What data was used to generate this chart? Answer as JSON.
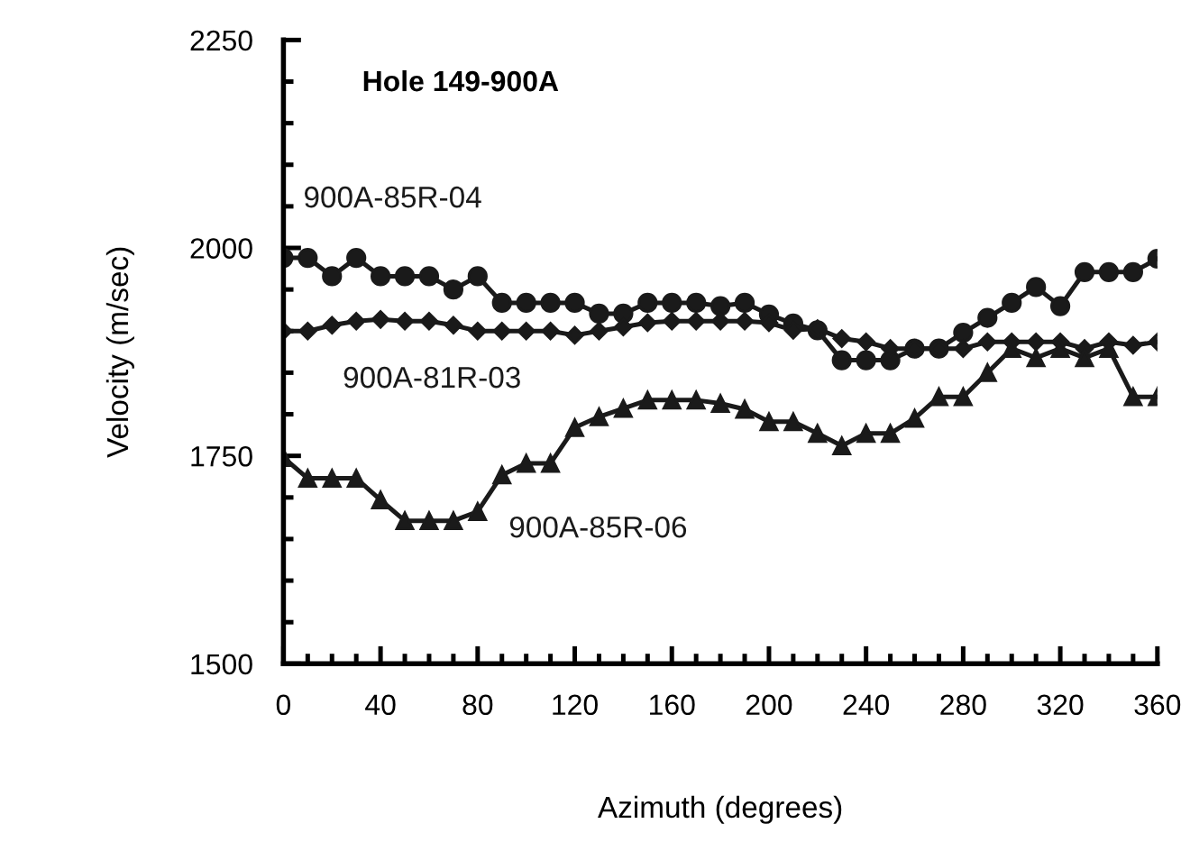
{
  "chart_data": {
    "type": "line",
    "title": "Hole 149-900A",
    "xlabel": "Azimuth (degrees)",
    "ylabel": "Velocity (m/sec)",
    "x": [
      0,
      10,
      20,
      30,
      40,
      50,
      60,
      70,
      80,
      90,
      100,
      110,
      120,
      130,
      140,
      150,
      160,
      170,
      180,
      190,
      200,
      210,
      220,
      230,
      240,
      250,
      260,
      270,
      280,
      290,
      300,
      310,
      320,
      330,
      340,
      350,
      360
    ],
    "series": [
      {
        "name": "900A-85R-04",
        "color": "#1a1a1a",
        "marker": "circle",
        "values": [
          1988,
          1988,
          1966,
          1988,
          1966,
          1966,
          1966,
          1950,
          1966,
          1934,
          1934,
          1934,
          1934,
          1921,
          1921,
          1934,
          1934,
          1934,
          1930,
          1934,
          1920,
          1909,
          1901,
          1865,
          1865,
          1865,
          1879,
          1879,
          1898,
          1916,
          1934,
          1953,
          1930,
          1971,
          1971,
          1971,
          1987
        ]
      },
      {
        "name": "900A-81R-03",
        "color": "#1a1a1a",
        "marker": "diamond",
        "values": [
          1900,
          1900,
          1907,
          1912,
          1914,
          1912,
          1912,
          1907,
          1900,
          1900,
          1900,
          1900,
          1895,
          1900,
          1905,
          1910,
          1912,
          1912,
          1912,
          1912,
          1910,
          1901,
          1903,
          1891,
          1887,
          1879,
          1879,
          1879,
          1879,
          1887,
          1887,
          1887,
          1887,
          1879,
          1887,
          1883,
          1887
        ]
      },
      {
        "name": "900A-85R-06",
        "color": "#1a1a1a",
        "marker": "triangle",
        "values": [
          1748,
          1723,
          1723,
          1723,
          1697,
          1672,
          1672,
          1672,
          1683,
          1727,
          1741,
          1741,
          1784,
          1797,
          1807,
          1817,
          1817,
          1817,
          1813,
          1806,
          1791,
          1791,
          1777,
          1762,
          1777,
          1777,
          1795,
          1821,
          1821,
          1850,
          1879,
          1868,
          1879,
          1868,
          1879,
          1821,
          1821
        ]
      }
    ],
    "xlim": [
      0,
      360
    ],
    "ylim": [
      1500,
      2250
    ],
    "xticks": [
      0,
      {
        "value": 10,
        "label": null
      },
      {
        "value": 20,
        "label": null
      },
      {
        "value": 30,
        "label": null
      },
      40,
      {
        "value": 50,
        "label": null
      },
      {
        "value": 60,
        "label": null
      },
      {
        "value": 70,
        "label": null
      },
      80,
      {
        "value": 90,
        "label": null
      },
      {
        "value": 100,
        "label": null
      },
      {
        "value": 110,
        "label": null
      },
      120,
      {
        "value": 130,
        "label": null
      },
      {
        "value": 140,
        "label": null
      },
      {
        "value": 150,
        "label": null
      },
      160,
      {
        "value": 170,
        "label": null
      },
      {
        "value": 180,
        "label": null
      },
      {
        "value": 190,
        "label": null
      },
      200,
      {
        "value": 210,
        "label": null
      },
      {
        "value": 220,
        "label": null
      },
      {
        "value": 230,
        "label": null
      },
      240,
      {
        "value": 250,
        "label": null
      },
      {
        "value": 260,
        "label": null
      },
      {
        "value": 270,
        "label": null
      },
      280,
      {
        "value": 290,
        "label": null
      },
      {
        "value": 300,
        "label": null
      },
      {
        "value": 310,
        "label": null
      },
      320,
      {
        "value": 330,
        "label": null
      },
      {
        "value": 340,
        "label": null
      },
      {
        "value": 350,
        "label": null
      },
      360
    ],
    "yticks": [
      1500,
      {
        "value": 1550,
        "label": null
      },
      {
        "value": 1600,
        "label": null
      },
      {
        "value": 1650,
        "label": null
      },
      {
        "value": 1700,
        "label": null
      },
      1750,
      {
        "value": 1800,
        "label": null
      },
      {
        "value": 1850,
        "label": null
      },
      {
        "value": 1900,
        "label": null
      },
      {
        "value": 1950,
        "label": null
      },
      2000,
      {
        "value": 2050,
        "label": null
      },
      {
        "value": 2100,
        "label": null
      },
      {
        "value": 2150,
        "label": null
      },
      {
        "value": 2200,
        "label": null
      },
      2250
    ],
    "grid": false,
    "legend": false,
    "line_style": "solid"
  }
}
